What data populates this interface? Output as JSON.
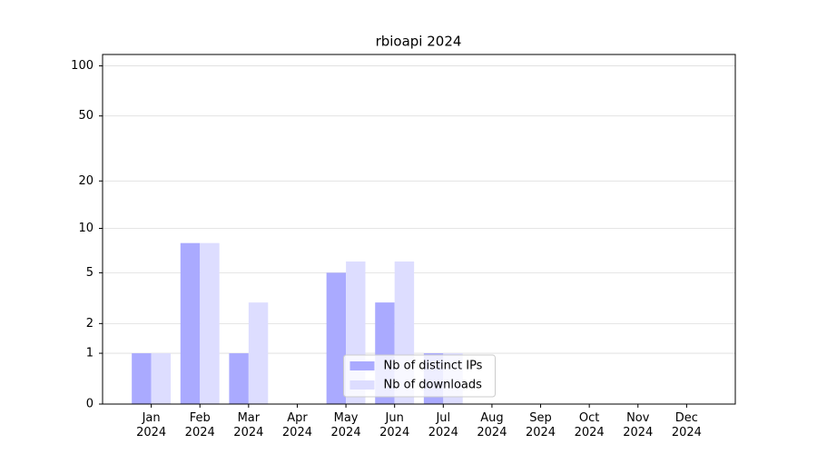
{
  "chart_data": {
    "type": "bar",
    "title": "rbioapi 2024",
    "categories": [
      "Jan\n2024",
      "Feb\n2024",
      "Mar\n2024",
      "Apr\n2024",
      "May\n2024",
      "Jun\n2024",
      "Jul\n2024",
      "Aug\n2024",
      "Sep\n2024",
      "Oct\n2024",
      "Nov\n2024",
      "Dec\n2024"
    ],
    "series": [
      {
        "name": "Nb of distinct IPs",
        "color": "#aaaaff",
        "values": [
          1,
          8,
          1,
          0,
          5,
          3,
          1,
          0,
          0,
          0,
          0,
          0
        ]
      },
      {
        "name": "Nb of downloads",
        "color": "#ddddff",
        "values": [
          1,
          8,
          3,
          0,
          6,
          6,
          1,
          0,
          0,
          0,
          0,
          0
        ]
      }
    ],
    "yscale": "log1p",
    "ylim": [
      0,
      117
    ],
    "yticks": [
      0,
      1,
      2,
      5,
      10,
      20,
      50,
      100
    ],
    "grid": true,
    "legend": "lower center"
  }
}
